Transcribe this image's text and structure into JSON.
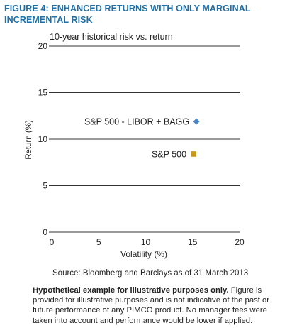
{
  "figure": {
    "title_line1": "FIGURE 4: ENHANCED RETURNS WITH ONLY MARGINAL",
    "title_line2": "INCREMENTAL RISK",
    "title_color": "#1f6fa8"
  },
  "chart_data": {
    "type": "scatter",
    "title": "10-year historical risk vs. return",
    "xlabel": "Volatility (%)",
    "ylabel": "Return (%)",
    "xlim": [
      0,
      20
    ],
    "ylim": [
      0,
      20
    ],
    "xticks": [
      "0",
      "5",
      "10",
      "15",
      "20"
    ],
    "yticks": [
      "0",
      "5",
      "10",
      "15",
      "20"
    ],
    "grid": "horizontal",
    "series": [
      {
        "name": "S&P 500 - LIBOR + BAGG",
        "x": 15.4,
        "y": 11.9,
        "marker": "diamond",
        "color": "#4a86c8"
      },
      {
        "name": "S&P 500",
        "x": 15.1,
        "y": 8.4,
        "marker": "square",
        "color": "#c9971a"
      }
    ]
  },
  "source": "Source: Bloomberg and Barclays as of 31 March 2013",
  "disclaimer": {
    "bold": "Hypothetical example for illustrative purposes only.",
    "text": " Figure is provided for illustrative purposes and is not indicative of the past or future performance of any PIMCO product. No manager fees were taken into account and performance would be lower if applied."
  }
}
